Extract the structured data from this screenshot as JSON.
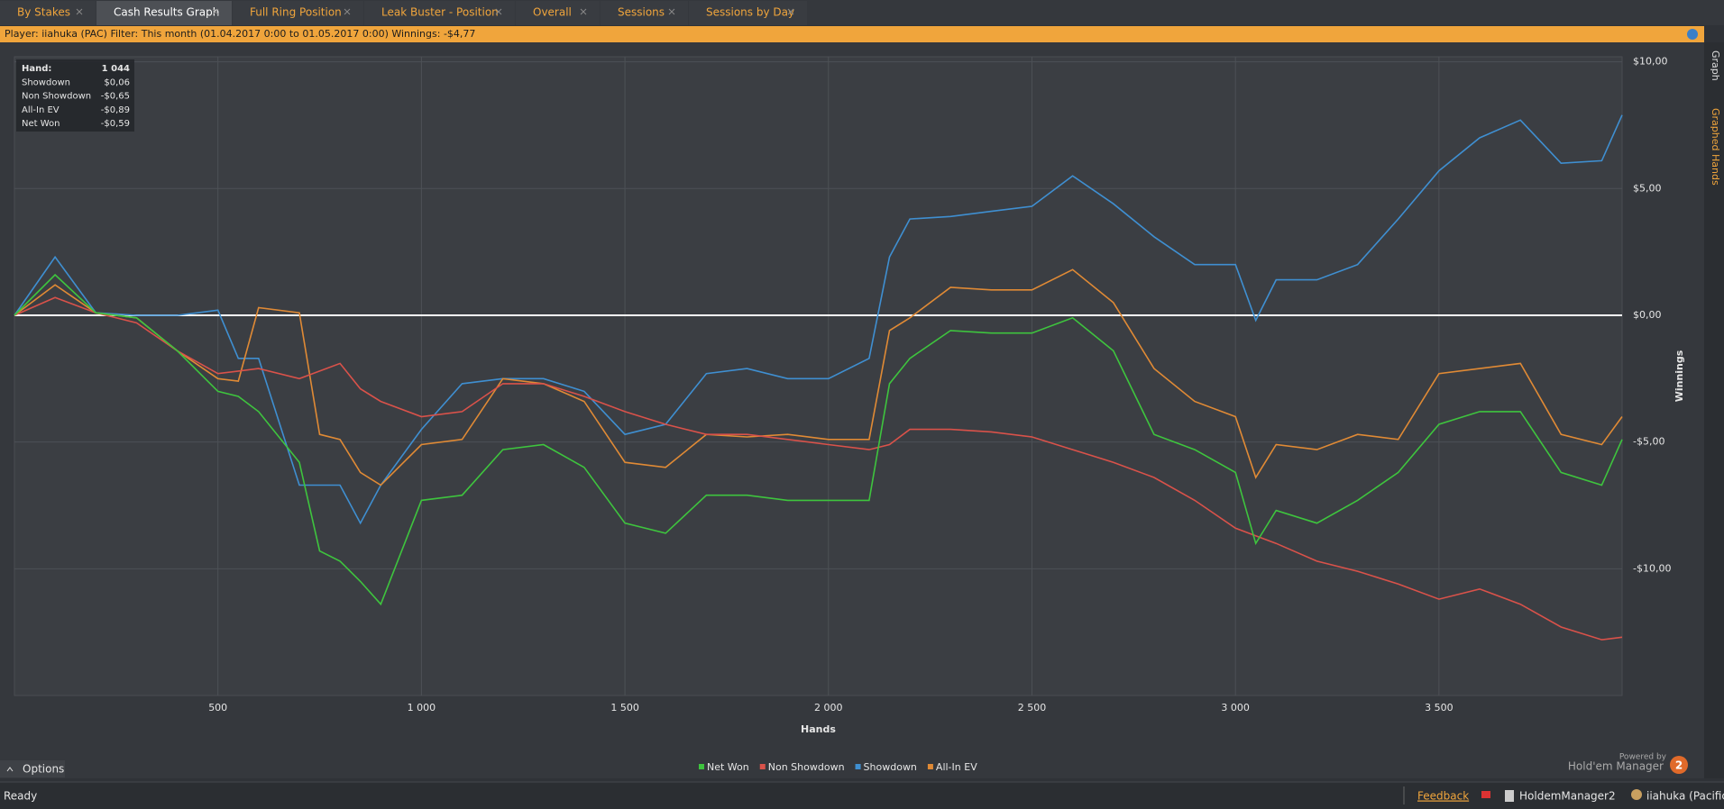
{
  "ui": {
    "tabs": [
      "By Stakes",
      "Cash Results Graph",
      "Full Ring Position",
      "Leak Buster - Position",
      "Overall",
      "Sessions",
      "Sessions by Day"
    ],
    "active_tab": 1,
    "info_bar": "Player: iiahuka (PAC) Filter: This month (01.04.2017 0:00 to 01.05.2017 0:00) Winnings: -$4,77",
    "stats": [
      [
        "Hand:",
        "1 044"
      ],
      [
        "Showdown",
        "$0,06"
      ],
      [
        "Non Showdown",
        "-$0,65"
      ],
      [
        "All-In EV",
        "-$0,89"
      ],
      [
        "Net Won",
        "-$0,59"
      ]
    ],
    "side_tabs": [
      "Graph",
      "Graphed Hands"
    ],
    "options": "Options",
    "powered_by": "Powered by",
    "brand": "Hold'em Manager",
    "brand_badge": "2",
    "status": "Ready",
    "feedback": "Feedback",
    "app": "HoldemManager2",
    "user": "iiahuka (Pacific)"
  },
  "chart_data": {
    "type": "line",
    "xlabel": "Hands",
    "ylabel": "Winnings",
    "x": [
      0,
      100,
      200,
      300,
      400,
      500,
      550,
      600,
      700,
      750,
      800,
      850,
      900,
      1000,
      1100,
      1200,
      1300,
      1400,
      1500,
      1600,
      1700,
      1800,
      1900,
      2000,
      2100,
      2150,
      2200,
      2300,
      2400,
      2500,
      2600,
      2700,
      2800,
      2900,
      3000,
      3050,
      3100,
      3200,
      3300,
      3400,
      3500,
      3600,
      3700,
      3800,
      3900,
      3950
    ],
    "series": [
      {
        "name": "Net Won",
        "color": "#3ec43e",
        "values": [
          0,
          1.6,
          0.1,
          -0.1,
          -1.4,
          -3.0,
          -3.2,
          -3.8,
          -5.8,
          -9.3,
          -9.7,
          -10.5,
          -11.4,
          -7.3,
          -7.1,
          -5.3,
          -5.1,
          -6.0,
          -8.2,
          -8.6,
          -7.1,
          -7.1,
          -7.3,
          -7.3,
          -7.3,
          -2.7,
          -1.7,
          -0.6,
          -0.7,
          -0.7,
          -0.1,
          -1.4,
          -4.7,
          -5.3,
          -6.2,
          -9.0,
          -7.7,
          -8.2,
          -7.3,
          -6.2,
          -4.3,
          -3.8,
          -3.8,
          -6.2,
          -6.7,
          -4.9
        ]
      },
      {
        "name": "Non Showdown",
        "color": "#d9524a",
        "values": [
          0,
          0.7,
          0.1,
          -0.3,
          -1.4,
          -2.3,
          -2.2,
          -2.1,
          -2.5,
          -2.2,
          -1.9,
          -2.9,
          -3.4,
          -4.0,
          -3.8,
          -2.7,
          -2.7,
          -3.2,
          -3.8,
          -4.3,
          -4.7,
          -4.7,
          -4.9,
          -5.1,
          -5.3,
          -5.1,
          -4.5,
          -4.5,
          -4.6,
          -4.8,
          -5.3,
          -5.8,
          -6.4,
          -7.3,
          -8.4,
          -8.7,
          -9.0,
          -9.7,
          -10.1,
          -10.6,
          -11.2,
          -10.8,
          -11.4,
          -12.3,
          -12.8,
          -12.7
        ]
      },
      {
        "name": "Showdown",
        "color": "#3f8fd1",
        "values": [
          0,
          2.3,
          0.1,
          0,
          0,
          0.2,
          -1.7,
          -1.7,
          -6.7,
          -6.7,
          -6.7,
          -8.2,
          -6.7,
          -4.5,
          -2.7,
          -2.5,
          -2.5,
          -3.0,
          -4.7,
          -4.3,
          -2.3,
          -2.1,
          -2.5,
          -2.5,
          -1.7,
          2.3,
          3.8,
          3.9,
          4.1,
          4.3,
          5.5,
          4.4,
          3.1,
          2.0,
          2.0,
          -0.2,
          1.4,
          1.4,
          2.0,
          3.8,
          5.7,
          7.0,
          7.7,
          6.0,
          6.1,
          7.9
        ]
      },
      {
        "name": "All-In EV",
        "color": "#e08a35",
        "values": [
          0,
          1.2,
          0.1,
          -0.1,
          -1.4,
          -2.5,
          -2.6,
          0.3,
          0.1,
          -4.7,
          -4.9,
          -6.2,
          -6.7,
          -5.1,
          -4.9,
          -2.5,
          -2.7,
          -3.4,
          -5.8,
          -6.0,
          -4.7,
          -4.8,
          -4.7,
          -4.9,
          -4.9,
          -0.6,
          -0.1,
          1.1,
          1.0,
          1.0,
          1.8,
          0.5,
          -2.1,
          -3.4,
          -4.0,
          -6.4,
          -5.1,
          -5.3,
          -4.7,
          -4.9,
          -2.3,
          -2.1,
          -1.9,
          -4.7,
          -5.1,
          -4.0
        ]
      }
    ],
    "xlim": [
      0,
      3950
    ],
    "ylim": [
      -15,
      10.2
    ],
    "xticks": [
      500,
      {
        "value": 1000,
        "label": "1 000"
      },
      {
        "value": 1500,
        "label": "1 500"
      },
      {
        "value": 2000,
        "label": "2 000"
      },
      {
        "value": 2500,
        "label": "2 500"
      },
      {
        "value": 3000,
        "label": "3 000"
      },
      {
        "value": 3500,
        "label": "3 500"
      }
    ],
    "yticks": [
      {
        "value": 10,
        "label": "$10,00"
      },
      {
        "value": 5,
        "label": "$5,00"
      },
      {
        "value": 0,
        "label": "$0,00"
      },
      {
        "value": -5,
        "label": "-$5,00"
      },
      {
        "value": -10,
        "label": "-$10,00"
      }
    ],
    "grid": true
  }
}
